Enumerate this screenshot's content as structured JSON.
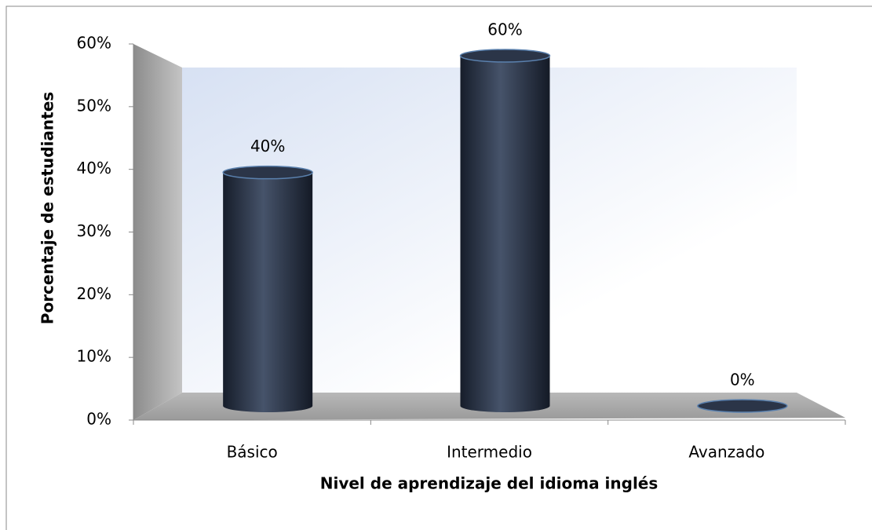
{
  "chart_data": {
    "type": "bar3d",
    "x_label": "Nivel de aprendizaje del idioma inglés",
    "y_label": "Porcentaje de estudiantes",
    "categories": [
      "Básico",
      "Intermedio",
      "Avanzado"
    ],
    "values": [
      40,
      60,
      0
    ],
    "value_labels": [
      "40%",
      "60%",
      "0%"
    ],
    "color": "#2b3548",
    "ylim": [
      0,
      60
    ],
    "yticks": [
      {
        "value": 0,
        "label": "0%"
      },
      {
        "value": 10,
        "label": "10%"
      },
      {
        "value": 20,
        "label": "20%"
      },
      {
        "value": 30,
        "label": "30%"
      },
      {
        "value": 40,
        "label": "40%"
      },
      {
        "value": 50,
        "label": "50%"
      },
      {
        "value": 60,
        "label": "60%"
      }
    ]
  }
}
